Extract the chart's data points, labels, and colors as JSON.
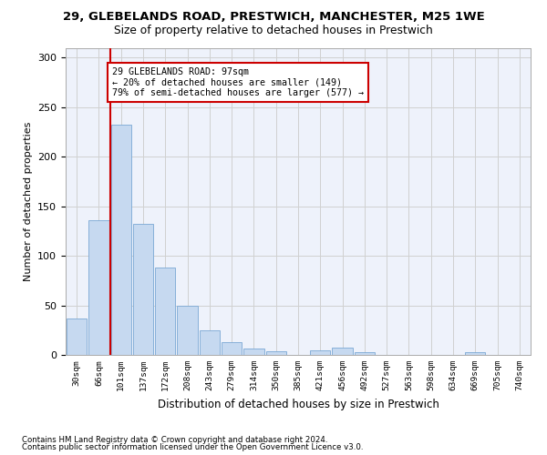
{
  "title1": "29, GLEBELANDS ROAD, PRESTWICH, MANCHESTER, M25 1WE",
  "title2": "Size of property relative to detached houses in Prestwich",
  "xlabel": "Distribution of detached houses by size in Prestwich",
  "ylabel": "Number of detached properties",
  "footnote1": "Contains HM Land Registry data © Crown copyright and database right 2024.",
  "footnote2": "Contains public sector information licensed under the Open Government Licence v3.0.",
  "bin_labels": [
    "30sqm",
    "66sqm",
    "101sqm",
    "137sqm",
    "172sqm",
    "208sqm",
    "243sqm",
    "279sqm",
    "314sqm",
    "350sqm",
    "385sqm",
    "421sqm",
    "456sqm",
    "492sqm",
    "527sqm",
    "563sqm",
    "598sqm",
    "634sqm",
    "669sqm",
    "705sqm",
    "740sqm"
  ],
  "bar_values": [
    37,
    136,
    232,
    132,
    88,
    50,
    25,
    13,
    6,
    4,
    0,
    5,
    7,
    3,
    0,
    0,
    0,
    0,
    3,
    0,
    0
  ],
  "bar_color": "#c6d9f0",
  "bar_edge_color": "#7aa8d4",
  "grid_color": "#d0d0d0",
  "red_line_color": "#cc0000",
  "annotation_text": "29 GLEBELANDS ROAD: 97sqm\n← 20% of detached houses are smaller (149)\n79% of semi-detached houses are larger (577) →",
  "annotation_box_color": "#ffffff",
  "annotation_box_edge": "#cc0000",
  "ylim": [
    0,
    310
  ],
  "yticks": [
    0,
    50,
    100,
    150,
    200,
    250,
    300
  ],
  "background_color": "#ffffff",
  "axes_background": "#eef2fb"
}
